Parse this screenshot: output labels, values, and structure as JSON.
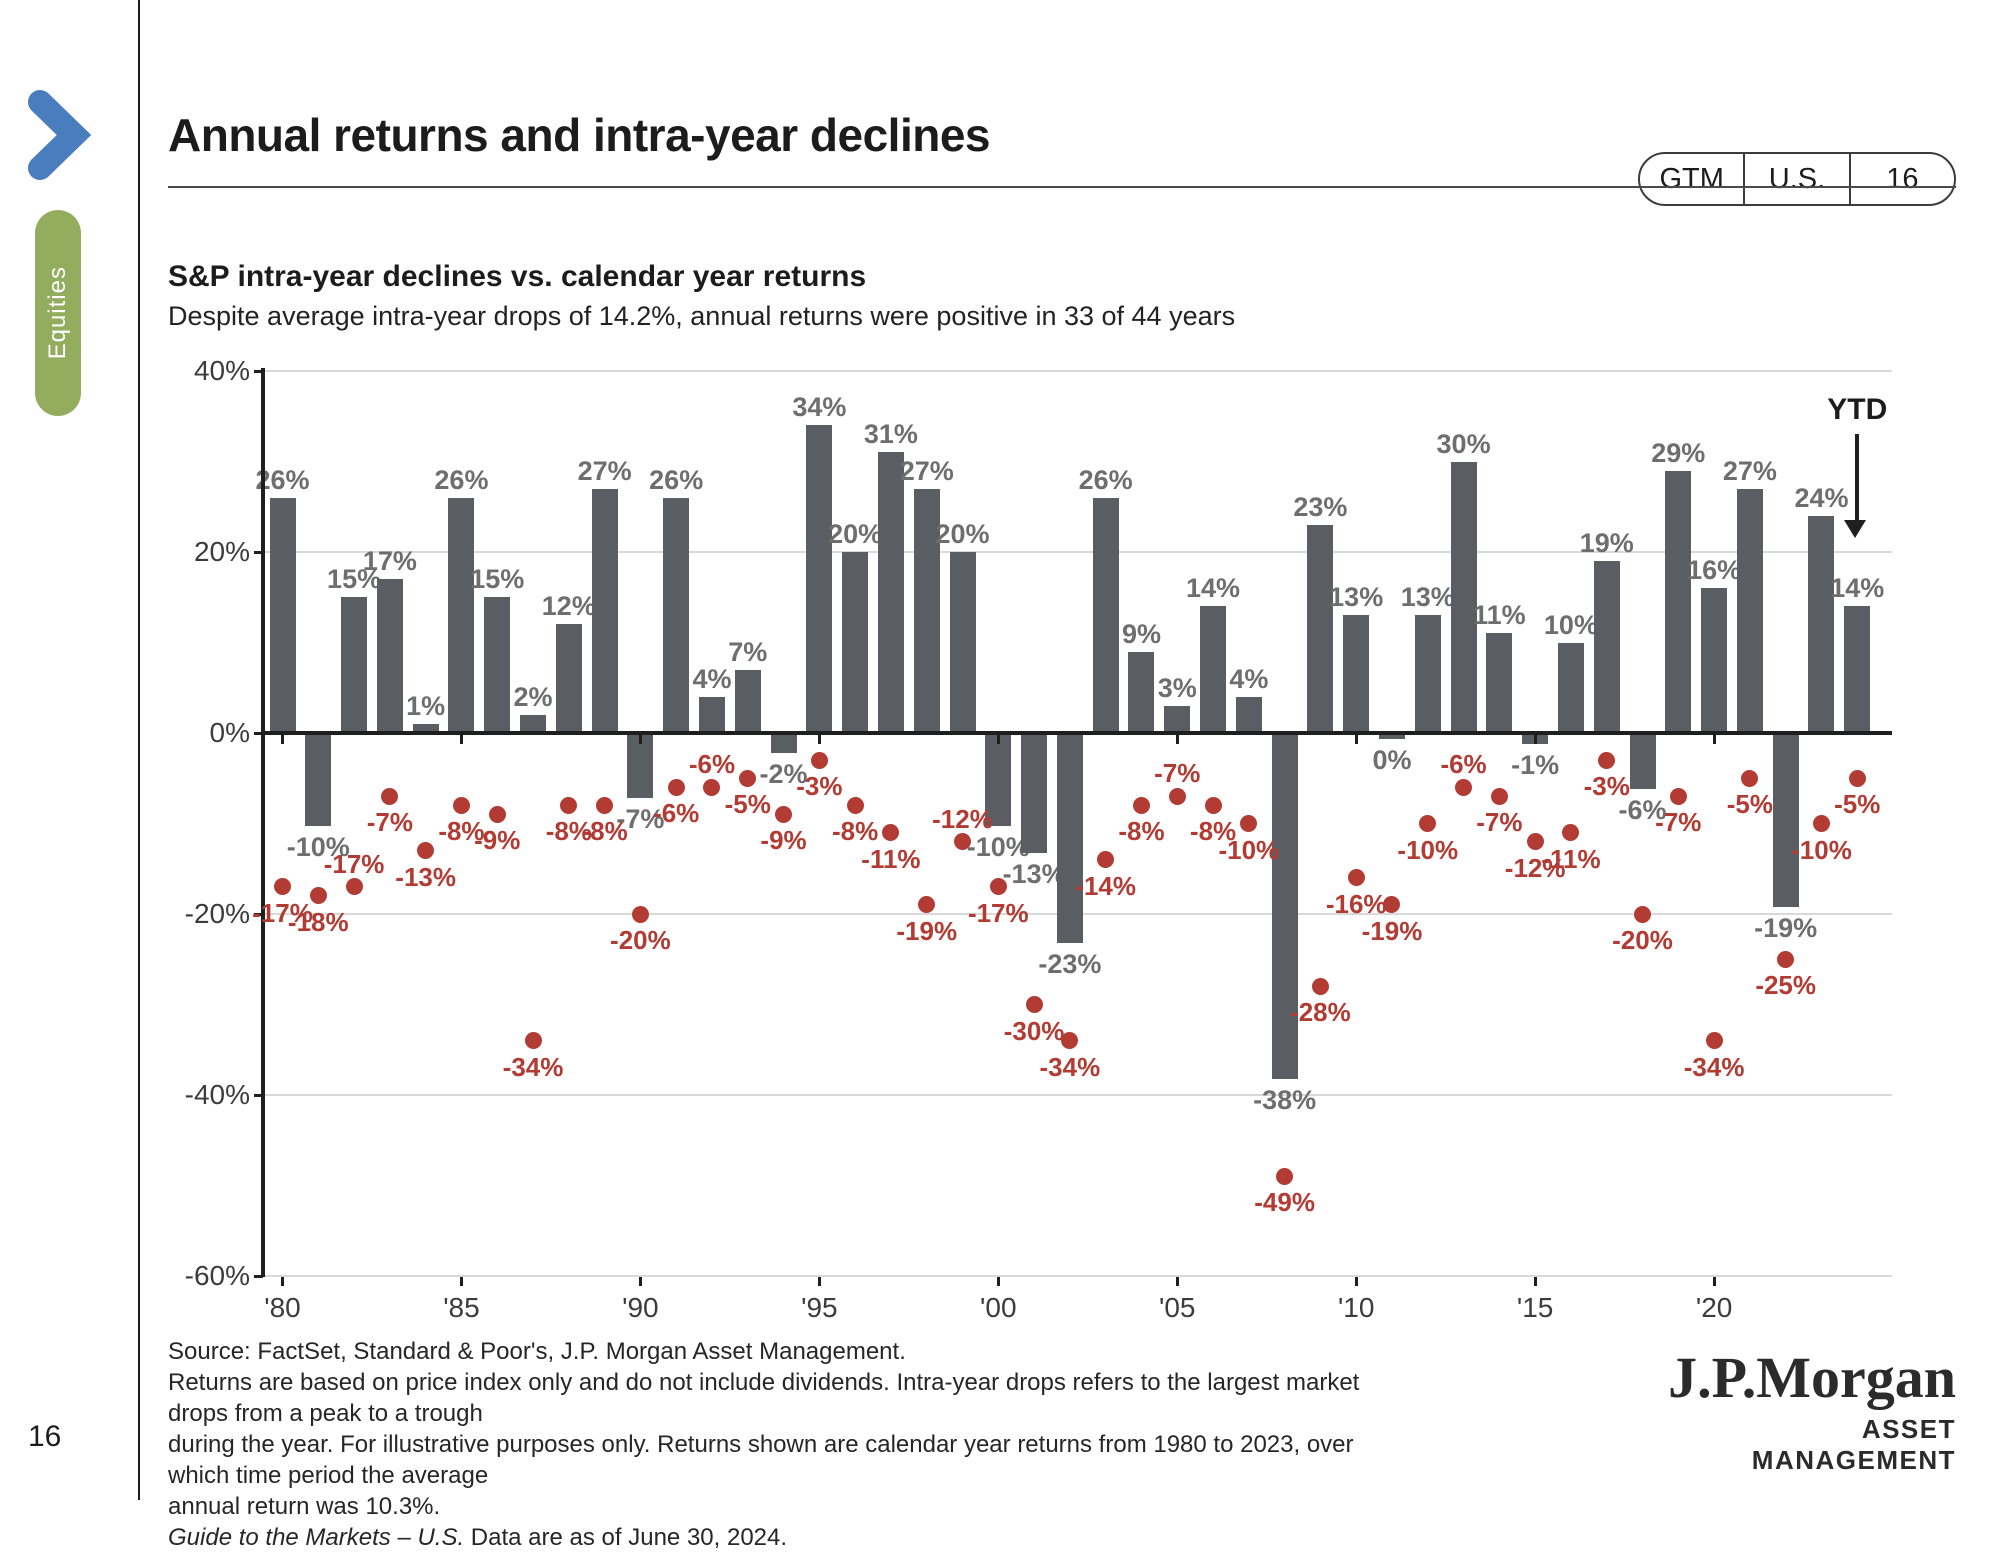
{
  "page_number": "16",
  "sidebar": {
    "section_label": "Equities"
  },
  "header": {
    "title": "Annual returns and intra-year declines",
    "badge": {
      "items": [
        "GTM",
        "U.S.",
        "16"
      ]
    }
  },
  "chart": {
    "heading": "S&P intra-year declines vs. calendar year returns",
    "subheading": "Despite average intra-year drops of 14.2%, annual returns were positive in 33 of 44 years",
    "ytd_annotation": "YTD"
  },
  "chart_data": {
    "type": "bar",
    "title": "S&P intra-year declines vs. calendar year returns",
    "x": [
      1980,
      1981,
      1982,
      1983,
      1984,
      1985,
      1986,
      1987,
      1988,
      1989,
      1990,
      1991,
      1992,
      1993,
      1994,
      1995,
      1996,
      1997,
      1998,
      1999,
      2000,
      2001,
      2002,
      2003,
      2004,
      2005,
      2006,
      2007,
      2008,
      2009,
      2010,
      2011,
      2012,
      2013,
      2014,
      2015,
      2016,
      2017,
      2018,
      2019,
      2020,
      2021,
      2022,
      2023,
      "YTD"
    ],
    "series": [
      {
        "name": "Calendar year return",
        "color": "#5a5e62",
        "values": [
          26,
          -10,
          15,
          17,
          1,
          26,
          15,
          2,
          12,
          27,
          -7,
          26,
          4,
          7,
          -2,
          34,
          20,
          31,
          27,
          20,
          -10,
          -13,
          -23,
          26,
          9,
          3,
          14,
          4,
          -38,
          23,
          13,
          0,
          13,
          30,
          11,
          -1,
          10,
          19,
          -6,
          29,
          16,
          27,
          -19,
          24,
          14
        ]
      },
      {
        "name": "Intra-year decline",
        "color": "#b23b33",
        "values": [
          -17,
          -18,
          -17,
          -7,
          -13,
          -8,
          -9,
          -34,
          -8,
          -8,
          -20,
          -6,
          -6,
          -5,
          -9,
          -3,
          -8,
          -11,
          -19,
          -12,
          -17,
          -30,
          -34,
          -14,
          -8,
          -7,
          -8,
          -10,
          -49,
          -28,
          -16,
          -19,
          -10,
          -6,
          -7,
          -12,
          -11,
          -3,
          -20,
          -7,
          -34,
          -5,
          -25,
          -10,
          -5
        ]
      }
    ],
    "ylim": [
      -60,
      40
    ],
    "y_ticks": [
      40,
      20,
      0,
      -20,
      -40,
      -60
    ],
    "x_tick_labels": [
      "'80",
      "'85",
      "'90",
      "'95",
      "'00",
      "'05",
      "'10",
      "'15",
      "'20"
    ],
    "grid": "horizontal",
    "colors": {
      "grid": "#d9d9d9",
      "axis": "#1f1f1f",
      "bar_label": "#6e6e6e"
    }
  },
  "footer": {
    "lines": [
      "Source: FactSet, Standard & Poor's, J.P. Morgan Asset Management.",
      "Returns are based on price index only and do not include dividends. Intra-year drops refers to the largest market drops from a peak to a trough",
      "during the year. For illustrative purposes only. Returns shown are calendar year returns from 1980 to 2023, over which time period the average",
      "annual return was 10.3%."
    ],
    "italic": "Guide to the Markets – U.S.",
    "rest": " Data are as of June 30, 2024."
  },
  "logo": {
    "name": "J.P.Morgan",
    "tagline": "ASSET MANAGEMENT"
  }
}
